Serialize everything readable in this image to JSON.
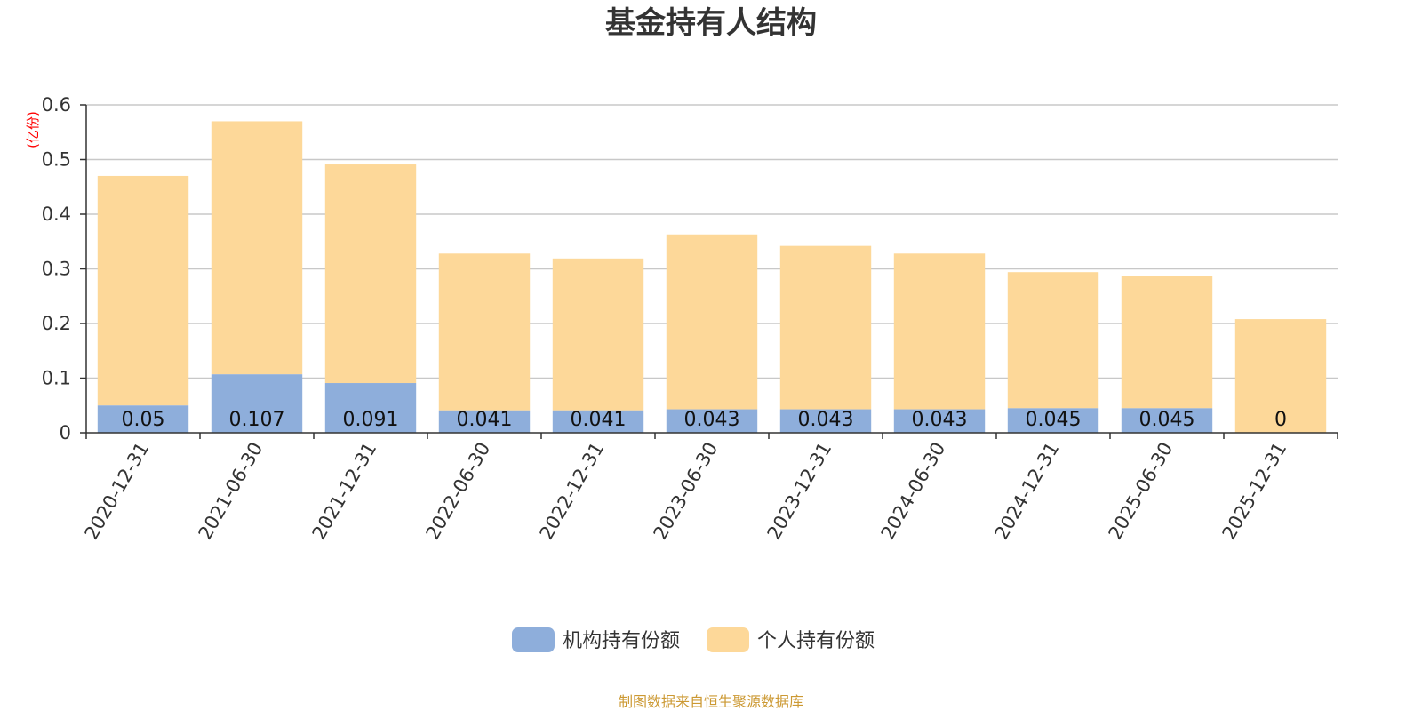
{
  "chart_data": {
    "type": "bar",
    "stacked": true,
    "title": "基金持有人结构",
    "unit_label": "(亿份)",
    "categories": [
      "2020-12-31",
      "2021-06-30",
      "2021-12-31",
      "2022-06-30",
      "2022-12-31",
      "2023-06-30",
      "2023-12-31",
      "2024-06-30",
      "2024-12-31",
      "2025-06-30",
      "2025-12-31"
    ],
    "series": [
      {
        "name": "机构持有份额",
        "color": "#8eaedb",
        "values": [
          0.05,
          0.107,
          0.091,
          0.041,
          0.041,
          0.043,
          0.043,
          0.043,
          0.045,
          0.045,
          0
        ],
        "labels": [
          "0.05",
          "0.107",
          "0.091",
          "0.041",
          "0.041",
          "0.043",
          "0.043",
          "0.043",
          "0.045",
          "0.045",
          "0"
        ]
      },
      {
        "name": "个人持有份额",
        "color": "#fdd899",
        "values": [
          0.42,
          0.463,
          0.4,
          0.287,
          0.278,
          0.32,
          0.299,
          0.285,
          0.249,
          0.242,
          0.208
        ]
      }
    ],
    "yticks": [
      "0",
      "0.1",
      "0.2",
      "0.3",
      "0.4",
      "0.5",
      "0.6"
    ],
    "ylim": [
      0,
      0.6
    ],
    "grid": true,
    "legend_position": "bottom-center",
    "source": "制图数据来自恒生聚源数据库"
  }
}
